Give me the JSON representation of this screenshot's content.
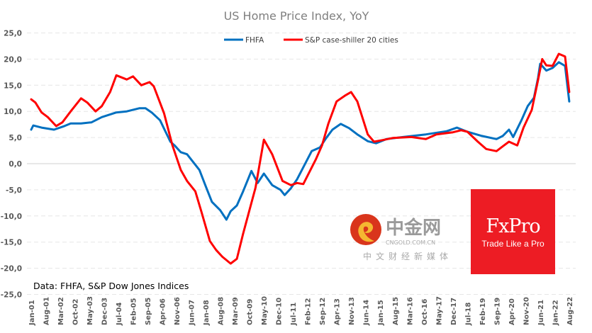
{
  "chart_data": {
    "type": "line",
    "title": "US Home Price Index, YoY",
    "xlabel": "",
    "ylabel": "",
    "ylim": [
      -25,
      25
    ],
    "yticks": [
      "25,0",
      "20,0",
      "15,0",
      "10,0",
      "5,0",
      "0,0",
      "-5,0",
      "-10,0",
      "-15,0",
      "-20,0",
      "-25,0"
    ],
    "xticks": [
      "Jan-01",
      "Aug-01",
      "Mar-02",
      "Oct-02",
      "May-03",
      "Dec-03",
      "Jul-04",
      "Feb-05",
      "Sep-05",
      "Apr-06",
      "Nov-06",
      "Jun-07",
      "Jan-08",
      "Aug-08",
      "Mar-09",
      "Oct-09",
      "May-10",
      "Dec-10",
      "Jul-11",
      "Feb-12",
      "Sep-12",
      "Apr-13",
      "Nov-13",
      "Jun-14",
      "Jan-15",
      "Aug-15",
      "Mar-16",
      "Oct-16",
      "May-17",
      "Dec-17",
      "Jul-18",
      "Feb-19",
      "Sep-19",
      "Apr-20",
      "Nov-20",
      "Jun-21",
      "Jan-22",
      "Aug-22"
    ],
    "grid": true,
    "legend_position": "top",
    "annotation": "Data: FHFA, S&P Dow Jones Indices",
    "series": [
      {
        "name": "FHFA",
        "color": "#0070c0",
        "points": [
          [
            "2001-01",
            6.5
          ],
          [
            "2001-02",
            7.3
          ],
          [
            "2001-06",
            6.9
          ],
          [
            "2001-12",
            6.5
          ],
          [
            "2002-05",
            7.2
          ],
          [
            "2002-08",
            7.7
          ],
          [
            "2003-01",
            7.7
          ],
          [
            "2003-06",
            7.9
          ],
          [
            "2003-11",
            8.9
          ],
          [
            "2004-06",
            9.8
          ],
          [
            "2004-11",
            10.0
          ],
          [
            "2005-05",
            10.6
          ],
          [
            "2005-08",
            10.6
          ],
          [
            "2005-11",
            9.8
          ],
          [
            "2006-03",
            8.3
          ],
          [
            "2006-08",
            4.2
          ],
          [
            "2006-10",
            3.5
          ],
          [
            "2007-01",
            2.2
          ],
          [
            "2007-04",
            1.8
          ],
          [
            "2007-06",
            0.8
          ],
          [
            "2007-10",
            -1.2
          ],
          [
            "2008-01",
            -4.3
          ],
          [
            "2008-04",
            -7.3
          ],
          [
            "2008-08",
            -8.9
          ],
          [
            "2008-11",
            -10.7
          ],
          [
            "2009-01",
            -9.1
          ],
          [
            "2009-04",
            -8.0
          ],
          [
            "2009-07",
            -5.3
          ],
          [
            "2009-11",
            -1.4
          ],
          [
            "2010-02",
            -3.7
          ],
          [
            "2010-05",
            -1.9
          ],
          [
            "2010-09",
            -4.1
          ],
          [
            "2011-01",
            -5.0
          ],
          [
            "2011-03",
            -6.0
          ],
          [
            "2011-06",
            -4.7
          ],
          [
            "2011-09",
            -3.0
          ],
          [
            "2012-01",
            0.1
          ],
          [
            "2012-04",
            2.4
          ],
          [
            "2012-08",
            3.1
          ],
          [
            "2012-11",
            4.9
          ],
          [
            "2013-02",
            6.5
          ],
          [
            "2013-06",
            7.6
          ],
          [
            "2013-10",
            6.8
          ],
          [
            "2014-02",
            5.6
          ],
          [
            "2014-07",
            4.3
          ],
          [
            "2014-11",
            3.9
          ],
          [
            "2015-04",
            4.7
          ],
          [
            "2015-12",
            5.1
          ],
          [
            "2016-11",
            5.6
          ],
          [
            "2017-09",
            6.2
          ],
          [
            "2018-02",
            6.9
          ],
          [
            "2018-07",
            6.1
          ],
          [
            "2019-02",
            5.3
          ],
          [
            "2019-09",
            4.7
          ],
          [
            "2019-12",
            5.3
          ],
          [
            "2020-03",
            6.5
          ],
          [
            "2020-05",
            5.1
          ],
          [
            "2020-09",
            8.3
          ],
          [
            "2020-12",
            11.0
          ],
          [
            "2021-03",
            12.6
          ],
          [
            "2021-05",
            16.4
          ],
          [
            "2021-06",
            19.1
          ],
          [
            "2021-09",
            17.8
          ],
          [
            "2021-12",
            18.3
          ],
          [
            "2022-03",
            19.4
          ],
          [
            "2022-06",
            18.7
          ],
          [
            "2022-08",
            11.9
          ]
        ]
      },
      {
        "name": "S&P case-shiller 20 cities",
        "color": "#ff0000",
        "points": [
          [
            "2001-01",
            12.3
          ],
          [
            "2001-03",
            11.7
          ],
          [
            "2001-06",
            9.8
          ],
          [
            "2001-09",
            8.9
          ],
          [
            "2002-01",
            7.2
          ],
          [
            "2002-04",
            7.9
          ],
          [
            "2002-08",
            10.0
          ],
          [
            "2003-01",
            12.5
          ],
          [
            "2003-04",
            11.7
          ],
          [
            "2003-08",
            10.0
          ],
          [
            "2003-11",
            11.0
          ],
          [
            "2004-03",
            13.7
          ],
          [
            "2004-06",
            16.9
          ],
          [
            "2004-11",
            16.1
          ],
          [
            "2005-02",
            16.7
          ],
          [
            "2005-06",
            15.0
          ],
          [
            "2005-10",
            15.6
          ],
          [
            "2005-12",
            14.8
          ],
          [
            "2006-05",
            9.6
          ],
          [
            "2006-09",
            3.5
          ],
          [
            "2007-01",
            -1.2
          ],
          [
            "2007-04",
            -3.3
          ],
          [
            "2007-08",
            -5.3
          ],
          [
            "2007-11",
            -9.3
          ],
          [
            "2008-03",
            -14.8
          ],
          [
            "2008-06",
            -16.5
          ],
          [
            "2008-09",
            -17.8
          ],
          [
            "2009-01",
            -19.1
          ],
          [
            "2009-04",
            -18.2
          ],
          [
            "2009-07",
            -13.4
          ],
          [
            "2010-01",
            -4.6
          ],
          [
            "2010-05",
            4.6
          ],
          [
            "2010-09",
            1.8
          ],
          [
            "2011-02",
            -3.3
          ],
          [
            "2011-06",
            -4.1
          ],
          [
            "2011-09",
            -3.7
          ],
          [
            "2011-12",
            -3.9
          ],
          [
            "2012-06",
            0.8
          ],
          [
            "2012-09",
            3.5
          ],
          [
            "2012-12",
            7.6
          ],
          [
            "2013-04",
            11.9
          ],
          [
            "2013-08",
            13.0
          ],
          [
            "2013-11",
            13.7
          ],
          [
            "2014-02",
            11.9
          ],
          [
            "2014-07",
            5.6
          ],
          [
            "2014-10",
            4.2
          ],
          [
            "2015-02",
            4.5
          ],
          [
            "2015-07",
            4.9
          ],
          [
            "2016-04",
            5.1
          ],
          [
            "2016-11",
            4.7
          ],
          [
            "2017-04",
            5.6
          ],
          [
            "2017-12",
            6.0
          ],
          [
            "2018-04",
            6.4
          ],
          [
            "2018-07",
            6.1
          ],
          [
            "2018-12",
            4.2
          ],
          [
            "2019-04",
            2.8
          ],
          [
            "2019-09",
            2.4
          ],
          [
            "2019-12",
            3.3
          ],
          [
            "2020-03",
            4.2
          ],
          [
            "2020-07",
            3.5
          ],
          [
            "2020-10",
            6.9
          ],
          [
            "2021-02",
            10.3
          ],
          [
            "2021-05",
            16.0
          ],
          [
            "2021-07",
            20.0
          ],
          [
            "2021-09",
            18.8
          ],
          [
            "2021-12",
            18.7
          ],
          [
            "2022-03",
            21.0
          ],
          [
            "2022-06",
            20.5
          ],
          [
            "2022-08",
            13.7
          ]
        ]
      }
    ]
  },
  "branding": {
    "fxpro_logo": "FxPro",
    "fxpro_tagline": "Trade Like a Pro",
    "watermark_main": "中金网",
    "watermark_url": "CNGOLD.COM.CN",
    "watermark_sub": "中文财经新媒体"
  }
}
